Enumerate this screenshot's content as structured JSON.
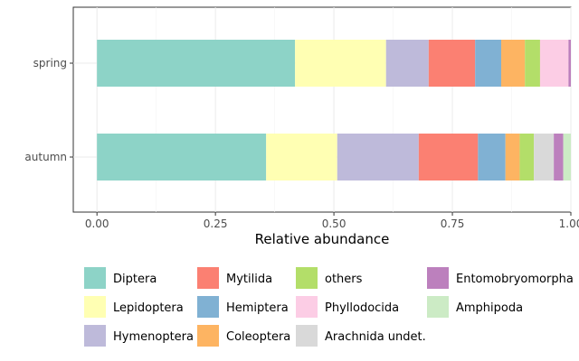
{
  "chart_data": {
    "type": "bar",
    "orientation": "horizontal",
    "stacked": true,
    "title": "",
    "xlabel": "Relative abundance",
    "ylabel": "",
    "xlim": [
      -0.05,
      1.0
    ],
    "xticks": [
      0.0,
      0.25,
      0.5,
      0.75,
      1.0
    ],
    "xtick_labels": [
      "0.00",
      "0.25",
      "0.50",
      "0.75",
      "1.00"
    ],
    "grid": true,
    "legend_position": "bottom",
    "categories": [
      "spring",
      "autumn"
    ],
    "series": [
      {
        "name": "Diptera",
        "color": "#8DD3C7",
        "values": [
          0.418,
          0.357
        ]
      },
      {
        "name": "Lepidoptera",
        "color": "#FFFFB3",
        "values": [
          0.192,
          0.15
        ]
      },
      {
        "name": "Hymenoptera",
        "color": "#BEBADA",
        "values": [
          0.09,
          0.172
        ]
      },
      {
        "name": "Mytilida",
        "color": "#FB8072",
        "values": [
          0.098,
          0.125
        ]
      },
      {
        "name": "Hemiptera",
        "color": "#80B1D3",
        "values": [
          0.055,
          0.058
        ]
      },
      {
        "name": "Coleoptera",
        "color": "#FDB462",
        "values": [
          0.05,
          0.03
        ]
      },
      {
        "name": "others",
        "color": "#B3DE69",
        "values": [
          0.032,
          0.03
        ]
      },
      {
        "name": "Phyllodocida",
        "color": "#FCCDE5",
        "values": [
          0.06,
          0.0
        ]
      },
      {
        "name": "Arachnida undet.",
        "color": "#D9D9D9",
        "values": [
          0.0,
          0.042
        ]
      },
      {
        "name": "Entomobryomorpha",
        "color": "#BC80BD",
        "values": [
          0.005,
          0.02
        ]
      },
      {
        "name": "Amphipoda",
        "color": "#CCEBC5",
        "values": [
          0.0,
          0.016
        ]
      }
    ],
    "legend_layout": [
      [
        "Diptera",
        "Lepidoptera",
        "Hymenoptera"
      ],
      [
        "Mytilida",
        "Hemiptera",
        "Coleoptera"
      ],
      [
        "others",
        "Phyllodocida",
        "Arachnida undet."
      ],
      [
        "Entomobryomorpha",
        "Amphipoda"
      ]
    ]
  }
}
